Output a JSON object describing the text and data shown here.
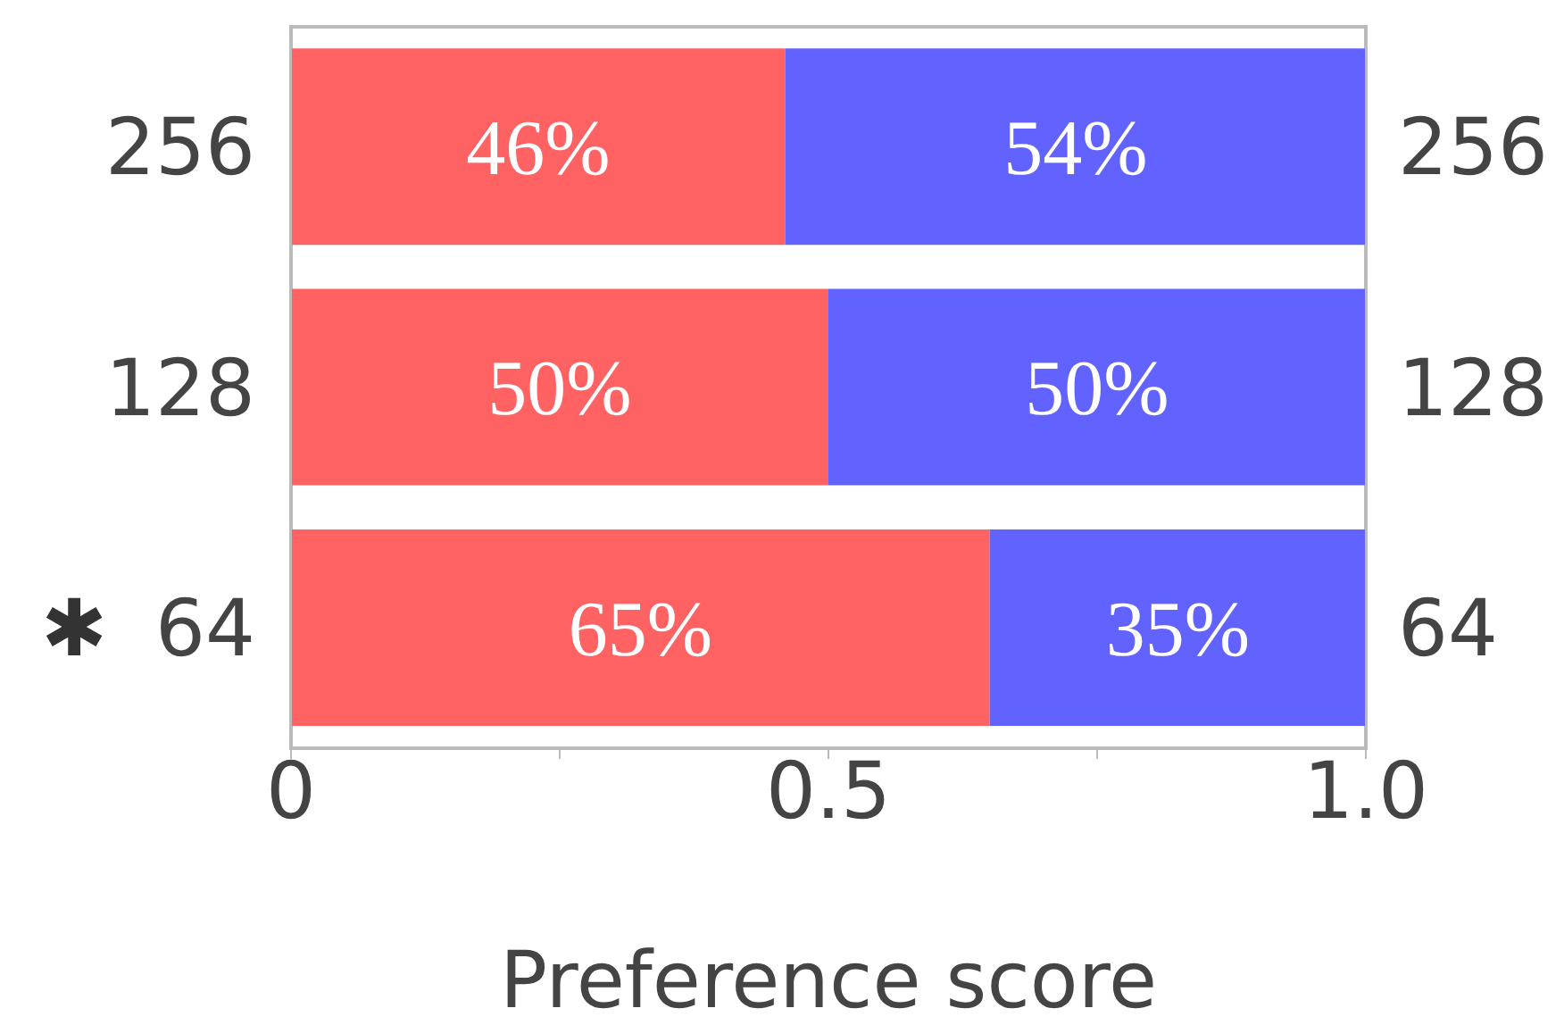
{
  "chart_data": {
    "type": "bar",
    "orientation": "horizontal",
    "stacked": true,
    "categories": [
      "256",
      "128",
      "64"
    ],
    "series": [
      {
        "color": "#ff6262",
        "values": [
          0.46,
          0.5,
          0.65
        ],
        "value_labels": [
          "46%",
          "50%",
          "65%"
        ]
      },
      {
        "color": "#6262ff",
        "values": [
          0.54,
          0.5,
          0.35
        ],
        "value_labels": [
          "54%",
          "50%",
          "35%"
        ]
      }
    ],
    "xlim": [
      0,
      1
    ],
    "xticks": [
      0,
      {
        "value": 0.25,
        "label": null
      },
      0.5,
      {
        "value": 0.75,
        "label": null
      },
      {
        "value": 1,
        "label": "1.0"
      }
    ],
    "xlabel": "Preference score",
    "annotations": [
      "✱"
    ],
    "grid": false
  }
}
